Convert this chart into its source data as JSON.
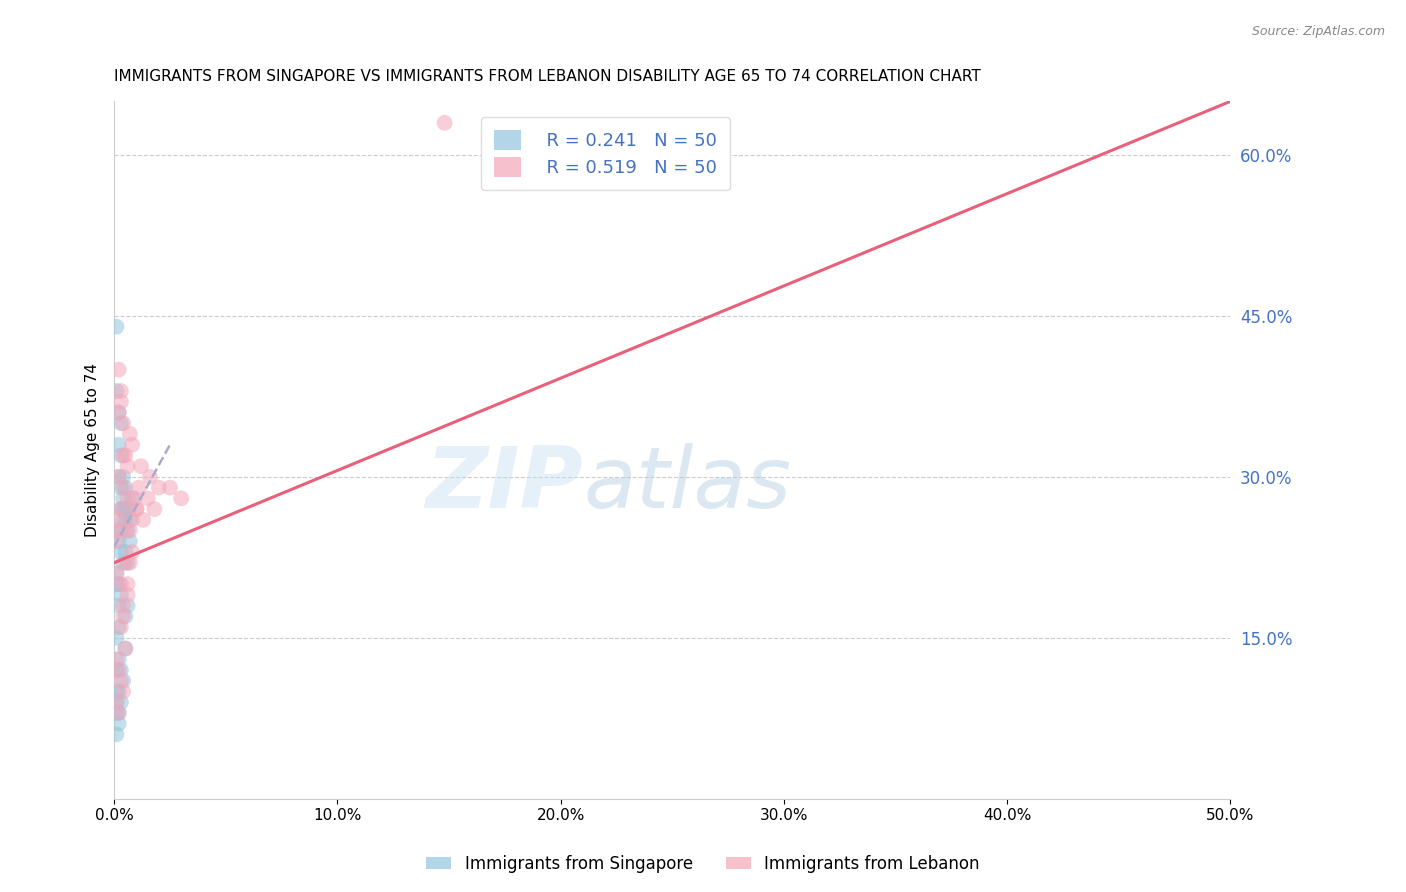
{
  "title": "IMMIGRANTS FROM SINGAPORE VS IMMIGRANTS FROM LEBANON DISABILITY AGE 65 TO 74 CORRELATION CHART",
  "source": "Source: ZipAtlas.com",
  "ylabel": "Disability Age 65 to 74",
  "xlim": [
    0.0,
    0.5
  ],
  "ylim": [
    0.0,
    0.65
  ],
  "xticks": [
    0.0,
    0.1,
    0.2,
    0.3,
    0.4,
    0.5
  ],
  "xtick_labels": [
    "0.0%",
    "10.0%",
    "20.0%",
    "30.0%",
    "40.0%",
    "50.0%"
  ],
  "yticks_right": [
    0.15,
    0.3,
    0.45,
    0.6
  ],
  "ytick_labels_right": [
    "15.0%",
    "30.0%",
    "45.0%",
    "60.0%"
  ],
  "watermark_zip": "ZIP",
  "watermark_atlas": "atlas",
  "legend_r_singapore": "R = 0.241",
  "legend_n_singapore": "N = 50",
  "legend_r_lebanon": "R = 0.519",
  "legend_n_lebanon": "N = 50",
  "legend_label_singapore": "Immigrants from Singapore",
  "legend_label_lebanon": "Immigrants from Lebanon",
  "singapore_color": "#92c5de",
  "lebanon_color": "#f4a6b8",
  "singapore_trend_color": "#aaaacc",
  "lebanon_trend_color": "#e8607a",
  "title_fontsize": 11,
  "axis_label_fontsize": 11,
  "tick_fontsize": 11,
  "legend_fontsize": 13,
  "sg_x": [
    0.001,
    0.001,
    0.001,
    0.001,
    0.001,
    0.002,
    0.002,
    0.002,
    0.002,
    0.002,
    0.002,
    0.003,
    0.003,
    0.003,
    0.003,
    0.003,
    0.004,
    0.004,
    0.004,
    0.004,
    0.005,
    0.005,
    0.005,
    0.005,
    0.006,
    0.006,
    0.006,
    0.007,
    0.007,
    0.008,
    0.001,
    0.001,
    0.002,
    0.002,
    0.003,
    0.003,
    0.004,
    0.005,
    0.005,
    0.006,
    0.001,
    0.002,
    0.001,
    0.003,
    0.002,
    0.001,
    0.002,
    0.001,
    0.003,
    0.004
  ],
  "sg_y": [
    0.44,
    0.38,
    0.1,
    0.08,
    0.06,
    0.36,
    0.33,
    0.13,
    0.1,
    0.08,
    0.07,
    0.35,
    0.32,
    0.27,
    0.12,
    0.09,
    0.3,
    0.28,
    0.22,
    0.11,
    0.29,
    0.27,
    0.23,
    0.14,
    0.27,
    0.25,
    0.18,
    0.26,
    0.24,
    0.28,
    0.25,
    0.21,
    0.3,
    0.2,
    0.29,
    0.19,
    0.27,
    0.26,
    0.17,
    0.22,
    0.15,
    0.16,
    0.12,
    0.23,
    0.18,
    0.2,
    0.24,
    0.09,
    0.25,
    0.26
  ],
  "lb_x": [
    0.001,
    0.001,
    0.001,
    0.002,
    0.002,
    0.002,
    0.003,
    0.003,
    0.003,
    0.004,
    0.004,
    0.004,
    0.005,
    0.005,
    0.006,
    0.006,
    0.007,
    0.007,
    0.008,
    0.009,
    0.01,
    0.011,
    0.012,
    0.013,
    0.015,
    0.016,
    0.018,
    0.02,
    0.025,
    0.03,
    0.002,
    0.003,
    0.004,
    0.005,
    0.006,
    0.007,
    0.008,
    0.01,
    0.148,
    0.001,
    0.001,
    0.002,
    0.003,
    0.004,
    0.005,
    0.003,
    0.004,
    0.002,
    0.006,
    0.008
  ],
  "lb_y": [
    0.25,
    0.21,
    0.13,
    0.36,
    0.3,
    0.12,
    0.38,
    0.27,
    0.11,
    0.35,
    0.29,
    0.1,
    0.32,
    0.22,
    0.31,
    0.2,
    0.34,
    0.25,
    0.33,
    0.28,
    0.27,
    0.29,
    0.31,
    0.26,
    0.28,
    0.3,
    0.27,
    0.29,
    0.29,
    0.28,
    0.4,
    0.37,
    0.32,
    0.25,
    0.28,
    0.22,
    0.26,
    0.27,
    0.63,
    0.24,
    0.09,
    0.08,
    0.16,
    0.18,
    0.14,
    0.2,
    0.17,
    0.26,
    0.19,
    0.23
  ],
  "sg_trend_x": [
    0.0,
    0.025
  ],
  "sg_trend_y": [
    0.235,
    0.33
  ],
  "lb_trend_x": [
    0.0,
    0.5
  ],
  "lb_trend_y": [
    0.22,
    0.65
  ]
}
